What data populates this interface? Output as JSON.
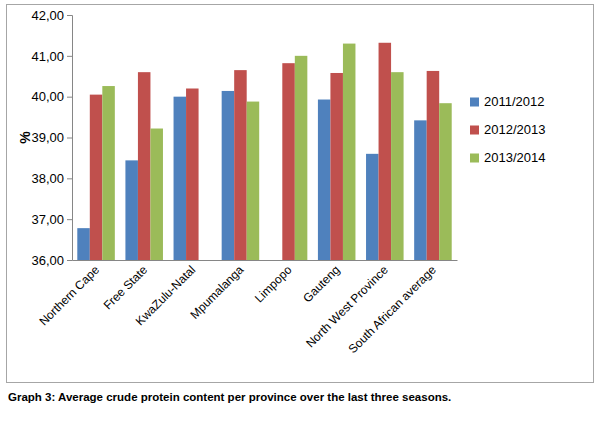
{
  "chart_data": {
    "type": "bar",
    "title": "Graph 3: Average crude protein content per province over the last three seasons.",
    "y_label": "%",
    "categories": [
      "Northern Cape",
      "Free State",
      "KwaZulu-Natal",
      "Mpumalanga",
      "Limpopo",
      "Gauteng",
      "North West Province",
      "South African average"
    ],
    "series": [
      {
        "name": "2011/2012",
        "color": "#4f81bd",
        "values": [
          36.78,
          38.44,
          40.0,
          40.14,
          null,
          39.93,
          38.6,
          39.42
        ]
      },
      {
        "name": "2012/2013",
        "color": "#c0504d",
        "values": [
          40.05,
          40.6,
          40.2,
          40.65,
          40.82,
          40.58,
          41.32,
          40.63
        ]
      },
      {
        "name": "2013/2014",
        "color": "#9bbb59",
        "values": [
          40.26,
          39.22,
          null,
          39.88,
          41.0,
          41.3,
          40.6,
          39.84
        ]
      }
    ],
    "ylim": [
      36,
      42
    ],
    "yticks": [
      {
        "value": 36,
        "label": "36,00"
      },
      {
        "value": 37,
        "label": "37,00"
      },
      {
        "value": 38,
        "label": "38,00"
      },
      {
        "value": 39,
        "label": "39,00"
      },
      {
        "value": 40,
        "label": "40,00"
      },
      {
        "value": 41,
        "label": "41,00"
      },
      {
        "value": 42,
        "label": "42,00"
      }
    ],
    "grid": false,
    "legend": "right"
  }
}
